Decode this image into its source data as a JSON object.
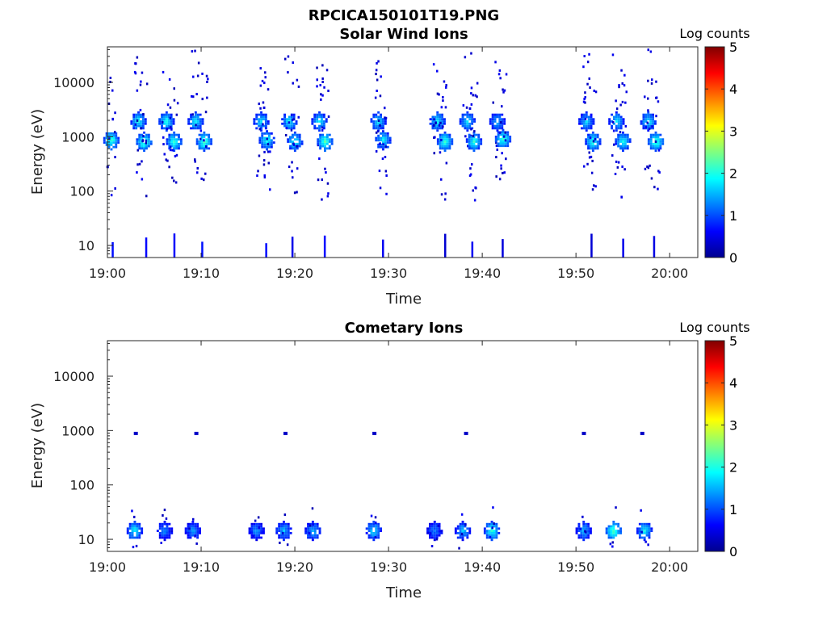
{
  "figure_title": "RPCICA150101T19.PNG",
  "chart_data": [
    {
      "type": "heatmap",
      "title": "Solar Wind Ions",
      "xlabel": "Time",
      "ylabel": "Energy (eV)",
      "x_range": [
        "19:00",
        "20:03"
      ],
      "x_ticks": [
        "19:00",
        "19:10",
        "19:20",
        "19:30",
        "19:40",
        "19:50",
        "20:00"
      ],
      "y_scale": "log",
      "y_range": [
        6,
        45000
      ],
      "y_ticks": [
        10,
        100,
        1000,
        10000
      ],
      "y_tick_labels": [
        "10",
        "100",
        "1000",
        "10000"
      ],
      "colorbar": {
        "label": "Log counts",
        "range": [
          0,
          5
        ],
        "ticks": [
          "0",
          "1",
          "2",
          "3",
          "4",
          "5"
        ],
        "colormap": "jet"
      },
      "bursts": [
        {
          "time_min": 0.3,
          "energy_ev": 900,
          "log_counts": 2.2
        },
        {
          "time_min": 3.2,
          "energy_ev": 2000,
          "log_counts": 1.9
        },
        {
          "time_min": 3.8,
          "energy_ev": 850,
          "log_counts": 2.3
        },
        {
          "time_min": 6.2,
          "energy_ev": 2000,
          "log_counts": 2.0
        },
        {
          "time_min": 7.0,
          "energy_ev": 850,
          "log_counts": 2.1
        },
        {
          "time_min": 9.3,
          "energy_ev": 2000,
          "log_counts": 1.9
        },
        {
          "time_min": 10.2,
          "energy_ev": 850,
          "log_counts": 2.3
        },
        {
          "time_min": 16.3,
          "energy_ev": 2000,
          "log_counts": 1.8
        },
        {
          "time_min": 16.9,
          "energy_ev": 900,
          "log_counts": 2.0
        },
        {
          "time_min": 19.3,
          "energy_ev": 2000,
          "log_counts": 1.9
        },
        {
          "time_min": 19.9,
          "energy_ev": 850,
          "log_counts": 2.0
        },
        {
          "time_min": 22.5,
          "energy_ev": 2000,
          "log_counts": 1.8
        },
        {
          "time_min": 23.1,
          "energy_ev": 850,
          "log_counts": 2.3
        },
        {
          "time_min": 28.8,
          "energy_ev": 2000,
          "log_counts": 1.8
        },
        {
          "time_min": 29.3,
          "energy_ev": 900,
          "log_counts": 1.9
        },
        {
          "time_min": 35.1,
          "energy_ev": 2000,
          "log_counts": 1.9
        },
        {
          "time_min": 35.9,
          "energy_ev": 850,
          "log_counts": 2.2
        },
        {
          "time_min": 38.3,
          "energy_ev": 2000,
          "log_counts": 1.8
        },
        {
          "time_min": 39.0,
          "energy_ev": 850,
          "log_counts": 2.1
        },
        {
          "time_min": 41.5,
          "energy_ev": 2000,
          "log_counts": 1.6
        },
        {
          "time_min": 42.1,
          "energy_ev": 950,
          "log_counts": 2.2
        },
        {
          "time_min": 51.0,
          "energy_ev": 2000,
          "log_counts": 1.7
        },
        {
          "time_min": 51.7,
          "energy_ev": 850,
          "log_counts": 2.1
        },
        {
          "time_min": 54.2,
          "energy_ev": 2000,
          "log_counts": 1.8
        },
        {
          "time_min": 54.9,
          "energy_ev": 850,
          "log_counts": 2.0
        },
        {
          "time_min": 57.6,
          "energy_ev": 2000,
          "log_counts": 1.9
        },
        {
          "time_min": 58.4,
          "energy_ev": 850,
          "log_counts": 2.3
        }
      ]
    },
    {
      "type": "heatmap",
      "title": "Cometary Ions",
      "xlabel": "Time",
      "ylabel": "Energy (eV)",
      "x_range": [
        "19:00",
        "20:03"
      ],
      "x_ticks": [
        "19:00",
        "19:10",
        "19:20",
        "19:30",
        "19:40",
        "19:50",
        "20:00"
      ],
      "y_scale": "log",
      "y_range": [
        6,
        45000
      ],
      "y_ticks": [
        10,
        100,
        1000,
        10000
      ],
      "y_tick_labels": [
        "10",
        "100",
        "1000",
        "10000"
      ],
      "colorbar": {
        "label": "Log counts",
        "range": [
          0,
          5
        ],
        "ticks": [
          "0",
          "1",
          "2",
          "3",
          "4",
          "5"
        ],
        "colormap": "jet"
      },
      "bursts": [
        {
          "time_min": 2.8,
          "energy_ev": 15,
          "log_counts": 1.9
        },
        {
          "time_min": 6.0,
          "energy_ev": 15,
          "log_counts": 1.3
        },
        {
          "time_min": 9.0,
          "energy_ev": 15,
          "log_counts": 1.4
        },
        {
          "time_min": 15.8,
          "energy_ev": 15,
          "log_counts": 1.4
        },
        {
          "time_min": 18.7,
          "energy_ev": 15,
          "log_counts": 1.6
        },
        {
          "time_min": 21.8,
          "energy_ev": 15,
          "log_counts": 1.6
        },
        {
          "time_min": 28.3,
          "energy_ev": 15,
          "log_counts": 1.8
        },
        {
          "time_min": 34.8,
          "energy_ev": 15,
          "log_counts": 1.3
        },
        {
          "time_min": 37.8,
          "energy_ev": 15,
          "log_counts": 1.6
        },
        {
          "time_min": 40.9,
          "energy_ev": 15,
          "log_counts": 2.1
        },
        {
          "time_min": 50.7,
          "energy_ev": 15,
          "log_counts": 1.6
        },
        {
          "time_min": 53.9,
          "energy_ev": 15,
          "log_counts": 2.3
        },
        {
          "time_min": 57.2,
          "energy_ev": 15,
          "log_counts": 1.9
        }
      ]
    }
  ]
}
